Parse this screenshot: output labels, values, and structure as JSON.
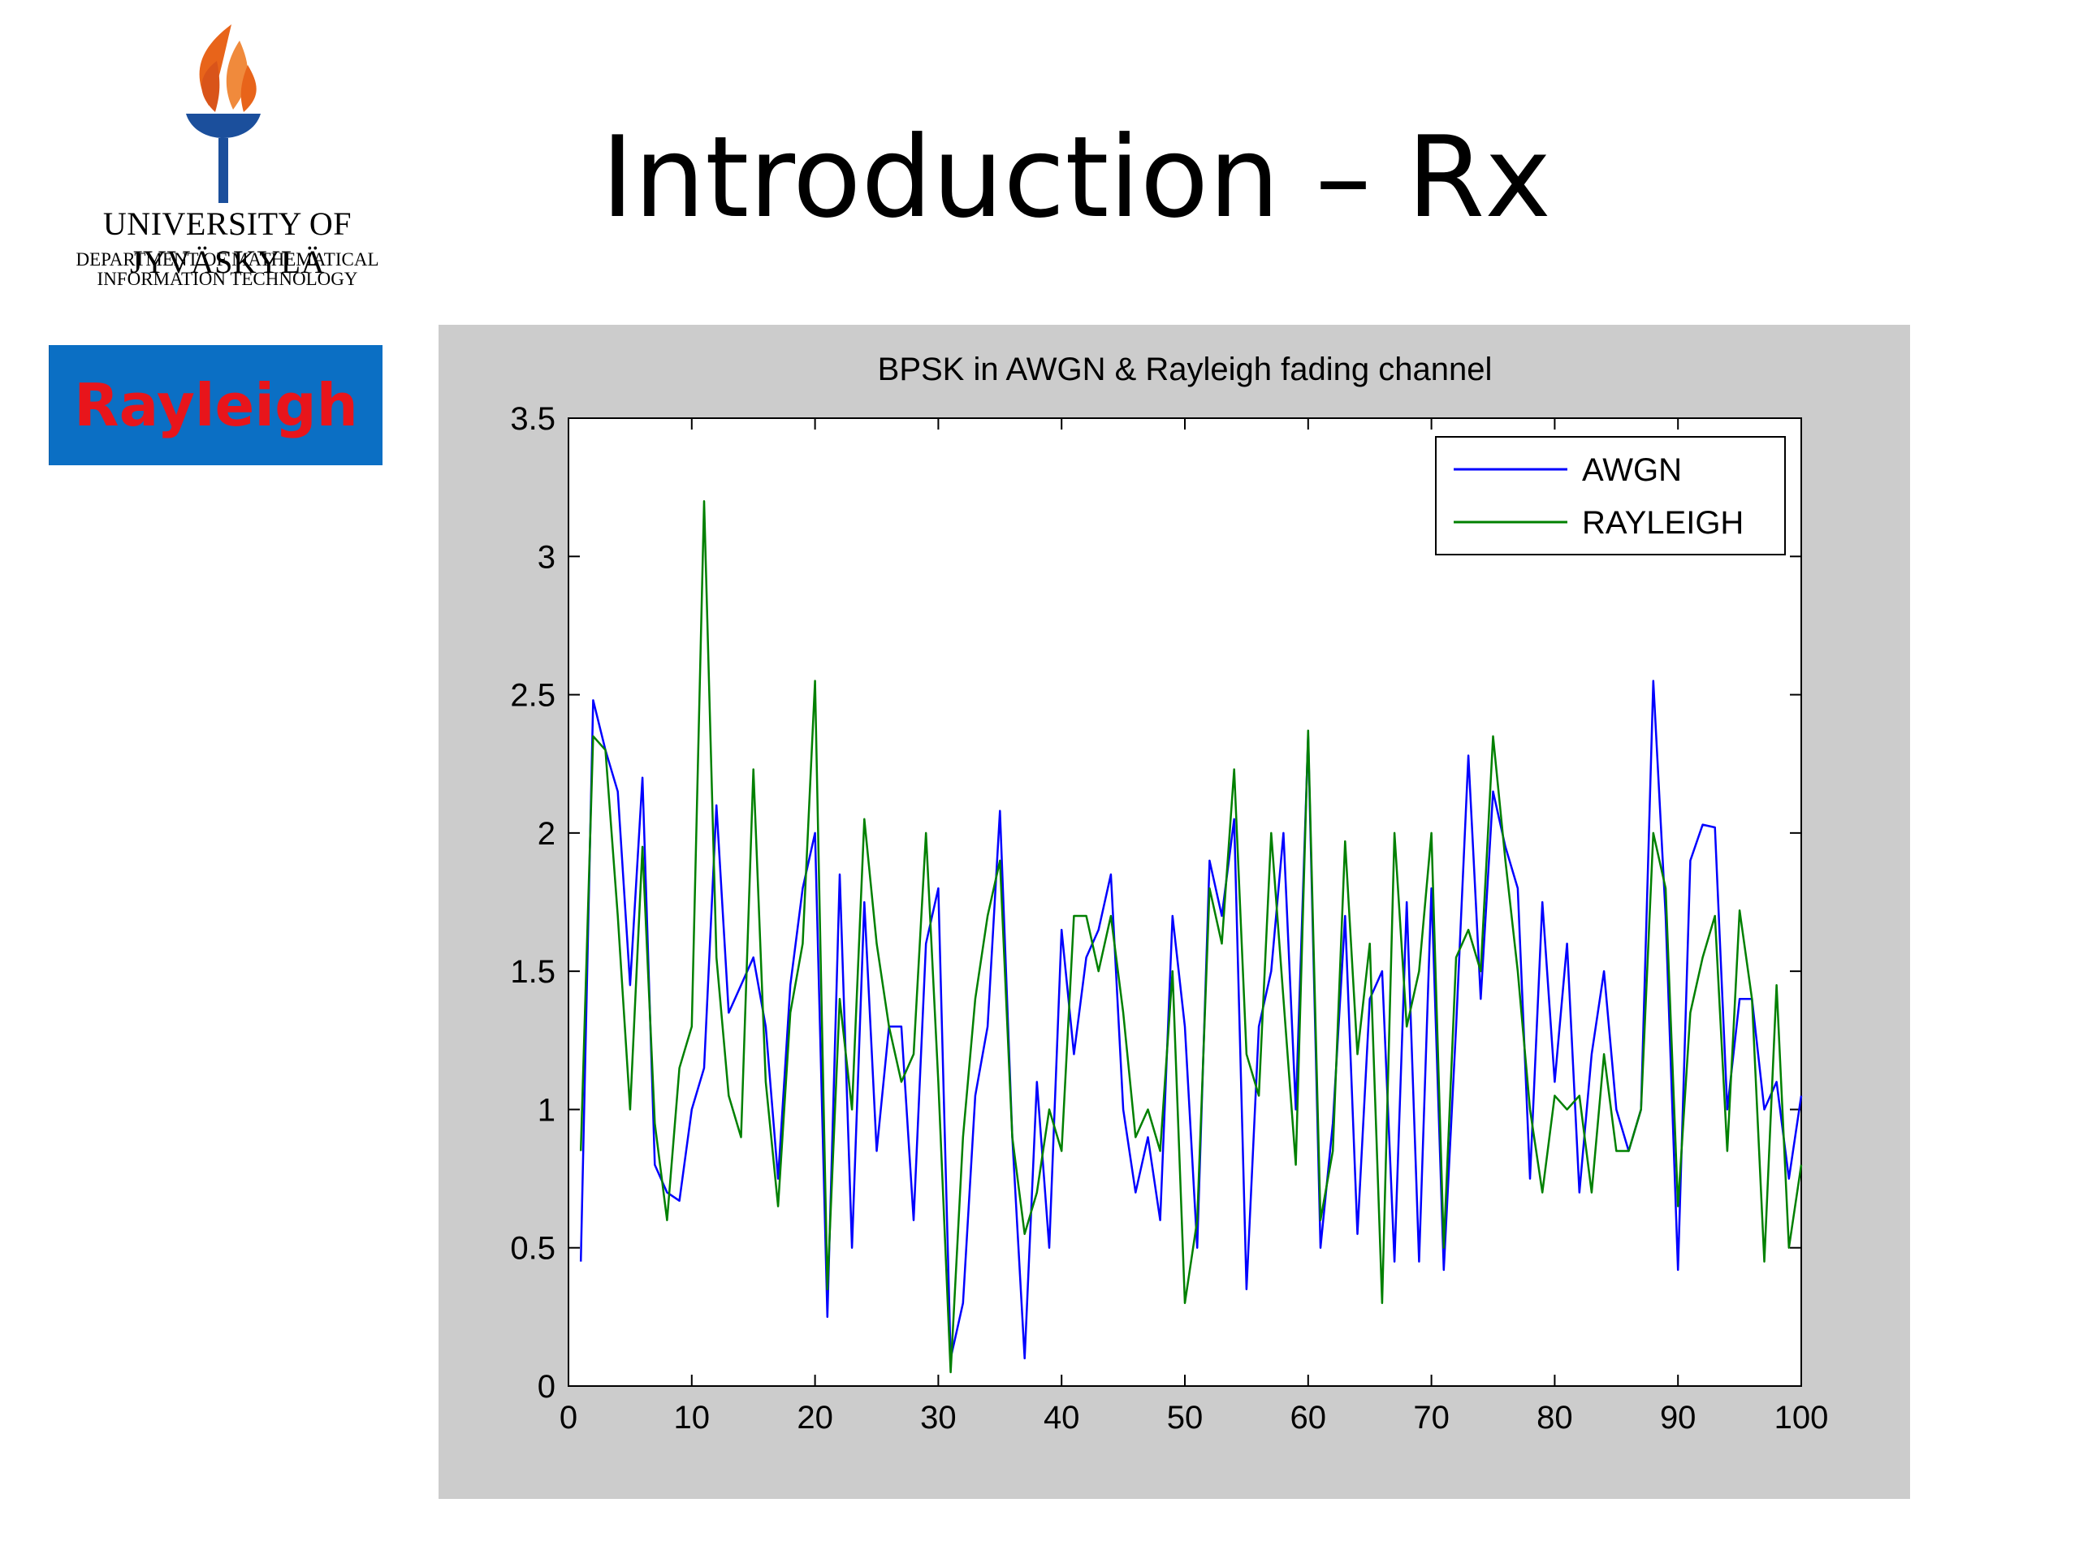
{
  "slide": {
    "title": "Introduction – Rx",
    "badge_label": "Rayleigh",
    "logo": {
      "name": "UNIVERSITY OF JYVÄSKYLÄ",
      "department_line1": "DEPARTMENT OF MATHEMATICAL",
      "department_line2": "INFORMATION TECHNOLOGY"
    }
  },
  "colors": {
    "badge_bg": "#0b6fc4",
    "badge_text": "#e8151b",
    "figure_bg": "#cccccc",
    "awgn": "#0000ff",
    "rayleigh": "#008000",
    "logo_flame": "#e8641a",
    "logo_blue": "#1b4f9c"
  },
  "chart_data": {
    "type": "line",
    "title": "BPSK in AWGN & Rayleigh fading channel",
    "xlabel": "",
    "ylabel": "",
    "xlim": [
      0,
      100
    ],
    "ylim": [
      0,
      3.5
    ],
    "xticks": [
      0,
      10,
      20,
      30,
      40,
      50,
      60,
      70,
      80,
      90,
      100
    ],
    "yticks": [
      0,
      0.5,
      1,
      1.5,
      2,
      2.5,
      3,
      3.5
    ],
    "xtick_labels": [
      "0",
      "10",
      "20",
      "30",
      "40",
      "50",
      "60",
      "70",
      "80",
      "90",
      "100"
    ],
    "ytick_labels": [
      "0",
      "0.5",
      "1",
      "1.5",
      "2",
      "2.5",
      "3",
      "3.5"
    ],
    "grid": false,
    "legend_position": "top-right",
    "series": [
      {
        "name": "AWGN",
        "color": "#0000ff",
        "x": [
          1,
          2,
          3,
          4,
          5,
          6,
          7,
          8,
          9,
          10,
          11,
          12,
          13,
          14,
          15,
          16,
          17,
          18,
          19,
          20,
          21,
          22,
          23,
          24,
          25,
          26,
          27,
          28,
          29,
          30,
          31,
          32,
          33,
          34,
          35,
          36,
          37,
          38,
          39,
          40,
          41,
          42,
          43,
          44,
          45,
          46,
          47,
          48,
          49,
          50,
          51,
          52,
          53,
          54,
          55,
          56,
          57,
          58,
          59,
          60,
          61,
          62,
          63,
          64,
          65,
          66,
          67,
          68,
          69,
          70,
          71,
          72,
          73,
          74,
          75,
          76,
          77,
          78,
          79,
          80,
          81,
          82,
          83,
          84,
          85,
          86,
          87,
          88,
          89,
          90,
          91,
          92,
          93,
          94,
          95,
          96,
          97,
          98,
          99,
          100
        ],
        "y": [
          0.45,
          2.48,
          2.3,
          2.15,
          1.45,
          2.2,
          0.8,
          0.7,
          0.67,
          1.0,
          1.15,
          2.1,
          1.35,
          1.45,
          1.55,
          1.3,
          0.75,
          1.45,
          1.8,
          2.0,
          0.25,
          1.85,
          0.5,
          1.75,
          0.85,
          1.3,
          1.3,
          0.6,
          1.6,
          1.8,
          0.1,
          0.3,
          1.05,
          1.3,
          2.08,
          0.9,
          0.1,
          1.1,
          0.5,
          1.65,
          1.2,
          1.55,
          1.65,
          1.85,
          1.0,
          0.7,
          0.9,
          0.6,
          1.7,
          1.3,
          0.5,
          1.9,
          1.7,
          2.05,
          0.35,
          1.3,
          1.5,
          2.0,
          1.0,
          2.35,
          0.5,
          0.95,
          1.7,
          0.55,
          1.4,
          1.5,
          0.45,
          1.75,
          0.45,
          1.8,
          0.42,
          1.3,
          2.28,
          1.4,
          2.15,
          1.95,
          1.8,
          0.75,
          1.75,
          1.1,
          1.6,
          0.7,
          1.2,
          1.5,
          1.0,
          0.85,
          1.0,
          2.55,
          1.7,
          0.42,
          1.9,
          2.03,
          2.02,
          1.0,
          1.4,
          1.4,
          1.0,
          1.1,
          0.75,
          1.05
        ]
      },
      {
        "name": "RAYLEIGH",
        "color": "#008000",
        "x": [
          1,
          2,
          3,
          4,
          5,
          6,
          7,
          8,
          9,
          10,
          11,
          12,
          13,
          14,
          15,
          16,
          17,
          18,
          19,
          20,
          21,
          22,
          23,
          24,
          25,
          26,
          27,
          28,
          29,
          30,
          31,
          32,
          33,
          34,
          35,
          36,
          37,
          38,
          39,
          40,
          41,
          42,
          43,
          44,
          45,
          46,
          47,
          48,
          49,
          50,
          51,
          52,
          53,
          54,
          55,
          56,
          57,
          58,
          59,
          60,
          61,
          62,
          63,
          64,
          65,
          66,
          67,
          68,
          69,
          70,
          71,
          72,
          73,
          74,
          75,
          76,
          77,
          78,
          79,
          80,
          81,
          82,
          83,
          84,
          85,
          86,
          87,
          88,
          89,
          90,
          91,
          92,
          93,
          94,
          95,
          96,
          97,
          98,
          99,
          100
        ],
        "y": [
          0.85,
          2.35,
          2.3,
          1.7,
          1.0,
          1.95,
          0.95,
          0.6,
          1.15,
          1.3,
          3.2,
          1.55,
          1.05,
          0.9,
          2.23,
          1.1,
          0.65,
          1.35,
          1.6,
          2.55,
          0.35,
          1.4,
          1.0,
          2.05,
          1.6,
          1.3,
          1.1,
          1.2,
          2.0,
          1.1,
          0.05,
          0.9,
          1.4,
          1.7,
          1.9,
          0.9,
          0.55,
          0.7,
          1.0,
          0.85,
          1.7,
          1.7,
          1.5,
          1.7,
          1.35,
          0.9,
          1.0,
          0.85,
          1.5,
          0.3,
          0.6,
          1.8,
          1.6,
          2.23,
          1.2,
          1.05,
          2.0,
          1.4,
          0.8,
          2.37,
          0.6,
          0.85,
          1.97,
          1.2,
          1.6,
          0.3,
          2.0,
          1.3,
          1.5,
          2.0,
          0.5,
          1.55,
          1.65,
          1.5,
          2.35,
          1.9,
          1.5,
          1.0,
          0.7,
          1.05,
          1.0,
          1.05,
          0.7,
          1.2,
          0.85,
          0.85,
          1.0,
          2.0,
          1.8,
          0.65,
          1.35,
          1.55,
          1.7,
          0.85,
          1.72,
          1.4,
          0.45,
          1.45,
          0.5,
          0.8
        ]
      }
    ]
  }
}
